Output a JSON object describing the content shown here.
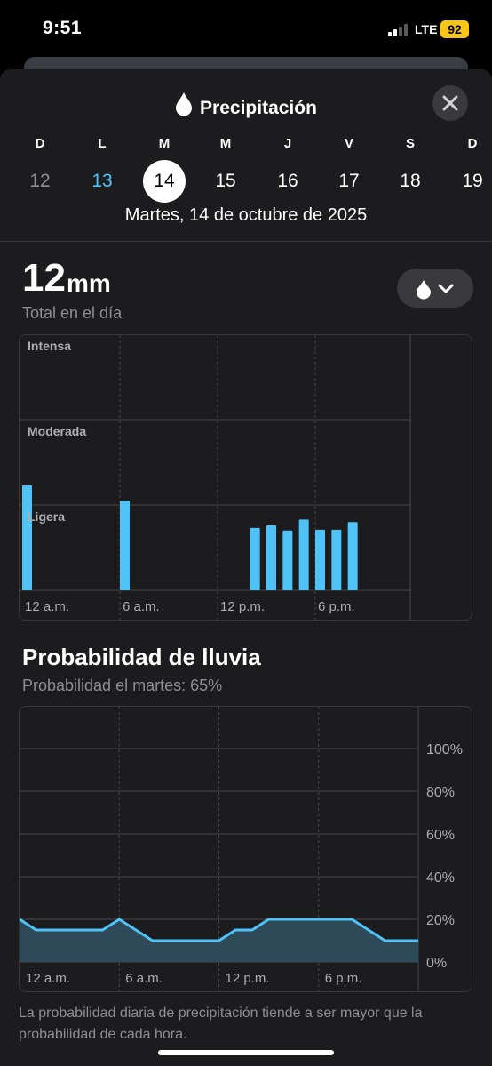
{
  "status": {
    "time": "9:51",
    "network": "LTE",
    "battery": "92"
  },
  "header": {
    "title": "Precipitación",
    "icon": "raindrop-icon",
    "close_icon": "close-icon"
  },
  "days": [
    {
      "letter": "D",
      "num": "12",
      "state": "past"
    },
    {
      "letter": "L",
      "num": "13",
      "state": "today"
    },
    {
      "letter": "M",
      "num": "14",
      "state": "selected"
    },
    {
      "letter": "M",
      "num": "15",
      "state": "future"
    },
    {
      "letter": "J",
      "num": "16",
      "state": "future"
    },
    {
      "letter": "V",
      "num": "17",
      "state": "future"
    },
    {
      "letter": "S",
      "num": "18",
      "state": "future"
    },
    {
      "letter": "D",
      "num": "19",
      "state": "future"
    }
  ],
  "selected_date": "Martes, 14 de octubre de 2025",
  "total": {
    "value": "12",
    "unit": "mm",
    "label": "Total en el día"
  },
  "metric_menu": {
    "icon": "raindrop-icon",
    "chevron": "chevron-down-icon"
  },
  "rain_probability": {
    "title": "Probabilidad de lluvia",
    "subtitle": "Probabilidad el martes: 65%"
  },
  "footnote": "La probabilidad diaria de precipitación tiende a ser mayor que la probabilidad de cada hora.",
  "colors": {
    "accent": "#4fc3f7",
    "sheet": "#1c1c1e",
    "grid": "#48484a",
    "area_fill": "#2e4a58",
    "muted": "#8e8e93"
  },
  "chart_data": [
    {
      "type": "bar",
      "x_ticks": [
        "12 a.m.",
        "6 a.m.",
        "12 p.m.",
        "6 p.m."
      ],
      "intensity_levels": [
        "Intensa",
        "Moderada",
        "Ligera"
      ],
      "bars": [
        {
          "hour": 0,
          "value": 1.23
        },
        {
          "hour": 6,
          "value": 1.05
        },
        {
          "hour": 14,
          "value": 0.73
        },
        {
          "hour": 15,
          "value": 0.76
        },
        {
          "hour": 16,
          "value": 0.7
        },
        {
          "hour": 17,
          "value": 0.83
        },
        {
          "hour": 18,
          "value": 0.71
        },
        {
          "hour": 19,
          "value": 0.71
        },
        {
          "hour": 20,
          "value": 0.8
        }
      ],
      "ylim": [
        0,
        3
      ]
    },
    {
      "type": "area",
      "x_ticks": [
        "12 a.m.",
        "6 a.m.",
        "12 p.m.",
        "6 p.m."
      ],
      "y_ticks": [
        "100%",
        "80%",
        "60%",
        "40%",
        "20%",
        "0%"
      ],
      "x": [
        0,
        1,
        2,
        3,
        4,
        5,
        6,
        7,
        8,
        9,
        10,
        11,
        12,
        13,
        14,
        15,
        16,
        17,
        18,
        19,
        20,
        21,
        22,
        23,
        24
      ],
      "values": [
        20,
        15,
        15,
        15,
        15,
        15,
        20,
        15,
        10,
        10,
        10,
        10,
        10,
        15,
        15,
        20,
        20,
        20,
        20,
        20,
        20,
        15,
        10,
        10,
        10
      ],
      "ylim": [
        0,
        100
      ]
    }
  ]
}
